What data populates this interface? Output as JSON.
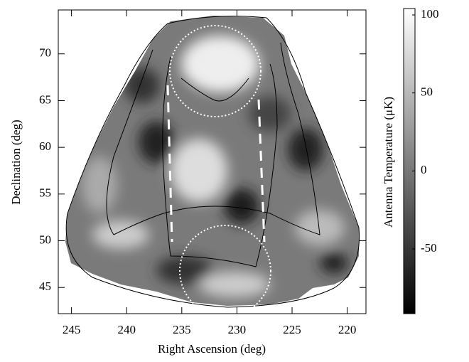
{
  "chart_data": {
    "type": "map",
    "xlabel": "Right Ascension (deg)",
    "ylabel": "Declination (deg)",
    "xlim": [
      246.2,
      218.3
    ],
    "xticks": [
      245,
      240,
      235,
      230,
      225,
      220
    ],
    "ylim": [
      42.2,
      74.7
    ],
    "yticks": [
      45,
      50,
      55,
      60,
      65,
      70
    ],
    "colorbar": {
      "label": "Antenna Temperature (μK)",
      "clim": [
        -91.5,
        104.1
      ],
      "ticks": [
        -50,
        0,
        50,
        100
      ]
    }
  }
}
